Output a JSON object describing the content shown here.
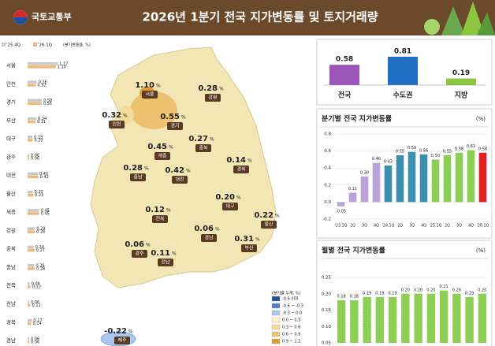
{
  "header": {
    "logo": "국토교통부",
    "title": "2026년 1분기 전국 지가변동률 및 토지거래량"
  },
  "map": {
    "unit": "%",
    "regions": [
      {
        "name": "서울",
        "value": "1.10"
      },
      {
        "name": "강원",
        "value": "0.28"
      },
      {
        "name": "인천",
        "value": "0.32"
      },
      {
        "name": "경기",
        "value": "0.55"
      },
      {
        "name": "세종",
        "value": "0.45"
      },
      {
        "name": "충북",
        "value": "0.27"
      },
      {
        "name": "경북",
        "value": "0.14"
      },
      {
        "name": "충남",
        "value": "0.28"
      },
      {
        "name": "대전",
        "value": "0.42"
      },
      {
        "name": "대구",
        "value": "0.20"
      },
      {
        "name": "전북",
        "value": "0.12"
      },
      {
        "name": "울산",
        "value": "0.22"
      },
      {
        "name": "경남",
        "value": "0.06"
      },
      {
        "name": "부산",
        "value": "0.31"
      },
      {
        "name": "광주",
        "value": "0.06"
      },
      {
        "name": "전남",
        "value": "0.11"
      },
      {
        "name": "제주",
        "value": "-0.22"
      }
    ],
    "legend": {
      "title": "(분기별 누계, %)",
      "items": [
        {
          "label": "-0.6 이하",
          "color": "#1d4f9c"
        },
        {
          "label": "-0.6 ~ -0.3",
          "color": "#4a7fd0"
        },
        {
          "label": "-0.3 ~ 0.0",
          "color": "#a8c6ee"
        },
        {
          "label": "0.0 ~ 0.3",
          "color": "#fbf3cc"
        },
        {
          "label": "0.3 ~ 0.6",
          "color": "#f3dc9a"
        },
        {
          "label": "0.6 ~ 0.9",
          "color": "#ecc170"
        },
        {
          "label": "0.9 ~ 1.2",
          "color": "#e59a2e"
        }
      ]
    }
  },
  "chart_data": [
    {
      "type": "hbar",
      "subtitle": "(분기변동률, %)",
      "categories": [
        "서울",
        "인천",
        "경기",
        "부산",
        "대구",
        "광주",
        "대전",
        "울산",
        "세종",
        "강원",
        "충북",
        "충남",
        "전북",
        "전남",
        "경북",
        "경남"
      ],
      "series": [
        {
          "name": "'25.4Q",
          "color": "#c9c9c9",
          "values": [
            1.17,
            0.36,
            0.56,
            0.34,
            0.19,
            0.06,
            0.4,
            0.2,
            0.45,
            0.29,
            0.24,
            0.26,
            0.08,
            0.06,
            0.17,
            0.06
          ],
          "value_labels": [
            "1.17",
            "0.36",
            "0.56",
            "0.34",
            "0.19",
            "0.06",
            "0.40",
            "0.20",
            "0.45",
            "0.29",
            "0.24",
            "0.26",
            "0.08",
            "0.06",
            "0.17",
            "0.06"
          ]
        },
        {
          "name": "'26.1Q",
          "color": "#f0b97a",
          "values": [
            1.1,
            0.32,
            0.55,
            0.31,
            0.2,
            0.06,
            0.42,
            0.22,
            0.45,
            0.28,
            0.27,
            0.28,
            0.12,
            0.11,
            0.14,
            0.06
          ],
          "value_labels": [
            "1.10",
            "0.32",
            "0.55",
            "0.31",
            "0.20",
            "0.06",
            "0.42",
            "0.22",
            "0.45",
            "0.28",
            "0.27",
            "0.28",
            "0.12",
            "0.11",
            "0.14",
            "0.06"
          ]
        }
      ]
    },
    {
      "type": "summary",
      "categories": [
        "전국",
        "수도권",
        "지방"
      ],
      "values": [
        0.58,
        0.81,
        0.19
      ],
      "value_labels": [
        "0.58",
        "0.81",
        "0.19"
      ],
      "colors": [
        "#9b55b8",
        "#1f6fc5",
        "#8cc63f"
      ]
    },
    {
      "type": "bar",
      "title": "분기별 전국 지가변동률",
      "unit": "(%)",
      "categories": [
        "'23.1Q",
        "2Q",
        "3Q",
        "4Q",
        "'24.1Q",
        "2Q",
        "3Q",
        "4Q",
        "'25.1Q",
        "2Q",
        "3Q",
        "4Q",
        "'26.1Q"
      ],
      "values": [
        -0.05,
        0.11,
        0.3,
        0.46,
        0.43,
        0.55,
        0.59,
        0.56,
        0.5,
        0.55,
        0.58,
        0.61,
        0.58
      ],
      "value_labels": [
        "-0.05",
        "0.11",
        "0.30",
        "0.46",
        "0.43",
        "0.55",
        "0.59",
        "0.56",
        "0.50",
        "0.55",
        "0.58",
        "0.61",
        "0.58"
      ],
      "colors": [
        "#b9a3d9",
        "#b9a3d9",
        "#b9a3d9",
        "#b9a3d9",
        "#3d8fb0",
        "#3d8fb0",
        "#3d8fb0",
        "#3d8fb0",
        "#8dcf55",
        "#8dcf55",
        "#8dcf55",
        "#8dcf55",
        "#e02020"
      ],
      "ylim": [
        -0.2,
        0.8
      ],
      "yticks": [
        0.8,
        0.6,
        0.4,
        0.2,
        {
          "value": 0,
          "label": "0.0"
        },
        -0.2
      ],
      "grid": true
    },
    {
      "type": "bar",
      "title": "월별 전국 지가변동률",
      "unit": "(%)",
      "values": [
        0.18,
        0.18,
        0.19,
        0.19,
        0.19,
        0.2,
        0.2,
        0.2,
        0.21,
        0.2,
        0.19,
        0.2
      ],
      "value_labels": [
        "0.18",
        "0.18",
        "0.19",
        "0.19",
        "0.19",
        "0.20",
        "0.20",
        "0.20",
        "0.21",
        "0.20",
        "0.19",
        "0.20"
      ],
      "color": "#8dcf55",
      "ylim": [
        0.05,
        0.25
      ],
      "yticks": [
        0.25,
        {
          "value": 0.2,
          "label": "0.20"
        },
        0.15,
        {
          "value": 0.1,
          "label": "0.10"
        },
        0.05
      ],
      "grid": true
    }
  ]
}
